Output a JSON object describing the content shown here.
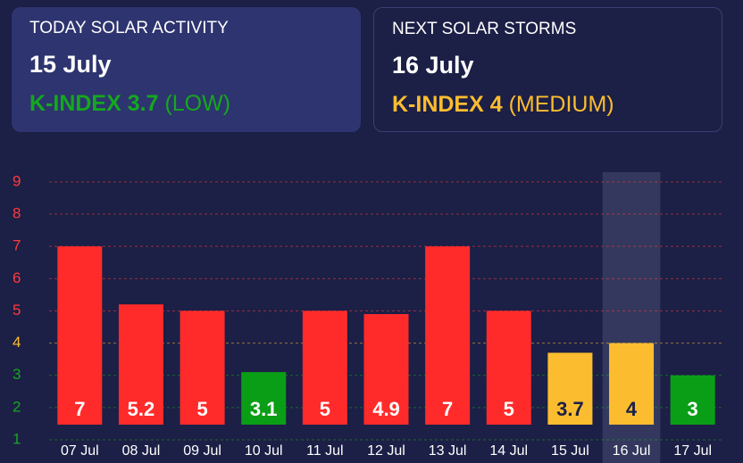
{
  "cards": [
    {
      "label": "TODAY SOLAR ACTIVITY",
      "date": "15 July",
      "index": "K-INDEX 3.7",
      "level": "(LOW)",
      "color": "#14a81e"
    },
    {
      "label": "NEXT SOLAR STORMS",
      "date": "16 July",
      "index": "K-INDEX 4",
      "level": "(MEDIUM)",
      "color": "#fbbd2f"
    }
  ],
  "chart_data": {
    "type": "bar",
    "categories": [
      "07 Jul",
      "08 Jul",
      "09 Jul",
      "10 Jul",
      "11 Jul",
      "12 Jul",
      "13 Jul",
      "14 Jul",
      "15 Jul",
      "16 Jul",
      "17 Jul"
    ],
    "values": [
      7,
      5.2,
      5,
      3.1,
      5,
      4.9,
      7,
      5,
      3.7,
      4,
      3
    ],
    "colors": [
      "#ff2b2b",
      "#ff2b2b",
      "#ff2b2b",
      "#0a9e16",
      "#ff2b2b",
      "#ff2b2b",
      "#ff2b2b",
      "#ff2b2b",
      "#fbbd2f",
      "#fbbd2f",
      "#0a9e16"
    ],
    "ylim": [
      1,
      9.8
    ],
    "yticks": [
      1,
      2,
      3,
      4,
      5,
      6,
      7,
      8,
      9
    ],
    "ytick_colors": [
      "#14a81e",
      "#14a81e",
      "#14a81e",
      "#fbbd2f",
      "#ff3b3b",
      "#ff3b3b",
      "#ff3b3b",
      "#ff3b3b",
      "#ff3b3b"
    ],
    "grid": true,
    "highlight_index": 9
  }
}
